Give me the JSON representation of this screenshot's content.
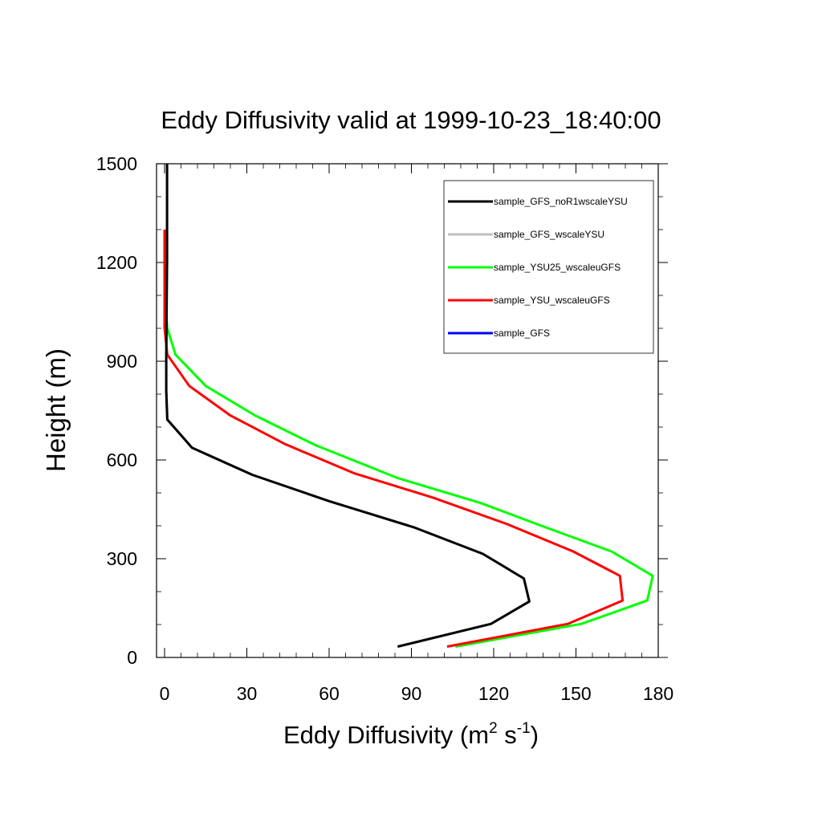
{
  "chart_data": {
    "type": "line",
    "title": "Eddy Diffusivity valid at 1999-10-23_18:40:00",
    "xlabel": {
      "base": "Eddy Diffusivity (m",
      "sup1": "2",
      "mid": " s",
      "sup2": "-1",
      "end": ")"
    },
    "ylabel": "Height (m)",
    "xlim": [
      0,
      180
    ],
    "ylim": [
      0,
      1500
    ],
    "xticks": [
      "0",
      "30",
      "60",
      "90",
      "120",
      "150",
      "180"
    ],
    "yticks": [
      "0",
      "300",
      "600",
      "900",
      "1200",
      "1500"
    ],
    "grid": false,
    "legend_position": "top-right",
    "series": [
      {
        "name": "sample_GFS",
        "color": "#0000ff",
        "x": [
          85,
          119,
          133,
          131,
          116,
          91,
          60,
          32,
          10,
          1,
          0.6,
          0.6,
          0.7,
          0.8,
          0.9,
          0.9,
          0.9
        ],
        "y": [
          33,
          102,
          170,
          240,
          315,
          395,
          475,
          555,
          637,
          723,
          810,
          900,
          1000,
          1100,
          1200,
          1350,
          1500
        ]
      },
      {
        "name": "sample_GFS_wscaleYSU",
        "color": "#bfbfbf",
        "x": [
          85,
          119,
          133,
          131,
          116,
          91,
          60,
          32,
          10,
          1,
          0.6,
          0.6,
          0.7,
          0.8,
          0.9,
          0.9,
          0.9
        ],
        "y": [
          33,
          102,
          170,
          240,
          315,
          395,
          475,
          555,
          637,
          723,
          810,
          900,
          1000,
          1100,
          1200,
          1350,
          1500
        ]
      },
      {
        "name": "sample_GFS_noR1wscaleYSU",
        "color": "#000000",
        "x": [
          85,
          119,
          133,
          131,
          116,
          91,
          60,
          32,
          10,
          1,
          0.6,
          0.6,
          0.7,
          0.8,
          0.9,
          0.9,
          0.9
        ],
        "y": [
          33,
          102,
          170,
          240,
          315,
          395,
          475,
          555,
          637,
          723,
          810,
          900,
          1000,
          1100,
          1200,
          1350,
          1500
        ]
      },
      {
        "name": "sample_YSU_wscaleuGFS",
        "color": "#ff0000",
        "x": [
          103,
          147,
          167,
          166,
          149,
          125,
          98,
          69,
          44,
          24,
          9,
          1,
          0,
          0,
          0,
          0
        ],
        "y": [
          33,
          102,
          173,
          248,
          322,
          405,
          485,
          560,
          648,
          735,
          825,
          920,
          1000,
          1100,
          1200,
          1300
        ]
      },
      {
        "name": "sample_YSU25_wscaleuGFS",
        "color": "#00ff00",
        "x": [
          106,
          152,
          176,
          178,
          163,
          139,
          115,
          85,
          55,
          33,
          15,
          4,
          1,
          0,
          0,
          0
        ],
        "y": [
          33,
          102,
          173,
          248,
          322,
          395,
          470,
          545,
          645,
          735,
          825,
          920,
          1000,
          1100,
          1200,
          1300
        ]
      }
    ],
    "legend_order": [
      "sample_GFS_noR1wscaleYSU",
      "sample_GFS_wscaleYSU",
      "sample_YSU25_wscaleuGFS",
      "sample_YSU_wscaleuGFS",
      "sample_GFS"
    ]
  }
}
